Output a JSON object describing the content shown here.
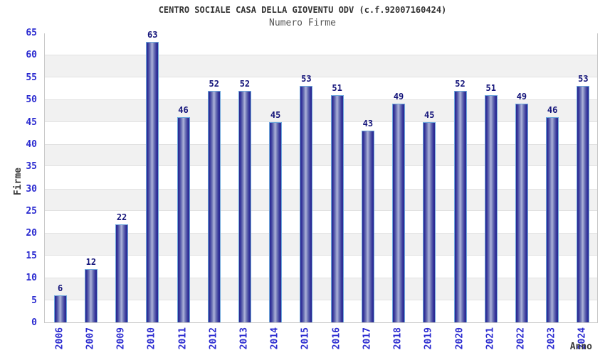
{
  "chart_data": {
    "type": "bar",
    "title": "CENTRO SOCIALE CASA DELLA GIOVENTU ODV (c.f.92007160424)",
    "subtitle": "Numero Firme",
    "xlabel": "Anno",
    "ylabel": "Firme",
    "categories": [
      "2006",
      "2007",
      "2009",
      "2010",
      "2011",
      "2012",
      "2013",
      "2014",
      "2015",
      "2016",
      "2017",
      "2018",
      "2019",
      "2020",
      "2021",
      "2022",
      "2023",
      "2024"
    ],
    "values": [
      6,
      12,
      22,
      63,
      46,
      52,
      52,
      45,
      53,
      51,
      43,
      49,
      45,
      52,
      51,
      49,
      46,
      53
    ],
    "ylim": [
      0,
      65
    ],
    "ytick_step": 5,
    "grid": "horizontal-bands-alternating",
    "legend": "none",
    "colors": {
      "bar_dark": "#28288e",
      "bar_light": "#adb3da",
      "bar_border": "#6fa8dc",
      "tick_label": "#2b2bd0",
      "value_label": "#14147a",
      "band_gray": "#f1f1f1",
      "plot_border": "#c9c9c9",
      "title": "#333333",
      "subtitle": "#555555",
      "axis_title": "#3a3a3a"
    }
  }
}
